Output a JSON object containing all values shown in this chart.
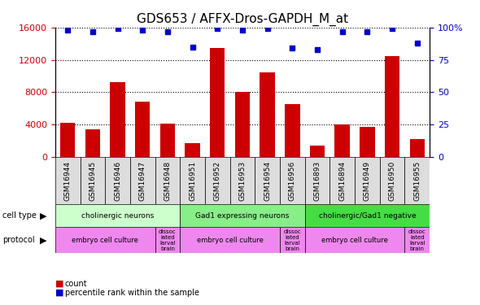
{
  "title": "GDS653 / AFFX-Dros-GAPDH_M_at",
  "samples": [
    "GSM16944",
    "GSM16945",
    "GSM16946",
    "GSM16947",
    "GSM16948",
    "GSM16951",
    "GSM16952",
    "GSM16953",
    "GSM16954",
    "GSM16956",
    "GSM16893",
    "GSM16894",
    "GSM16949",
    "GSM16950",
    "GSM16955"
  ],
  "counts": [
    4200,
    3400,
    9200,
    6800,
    4100,
    1700,
    13500,
    8000,
    10500,
    6500,
    1400,
    4000,
    3700,
    12500,
    2200
  ],
  "percentile_ranks": [
    98,
    97,
    99,
    98,
    97,
    85,
    99,
    98,
    99,
    84,
    83,
    97,
    97,
    99,
    88
  ],
  "ylim_left": [
    0,
    16000
  ],
  "ylim_right": [
    0,
    100
  ],
  "yticks_left": [
    0,
    4000,
    8000,
    12000,
    16000
  ],
  "yticks_right": [
    0,
    25,
    50,
    75,
    100
  ],
  "bar_color": "#CC0000",
  "dot_color": "#0000CC",
  "cell_type_groups": [
    {
      "label": "cholinergic neurons",
      "start": 0,
      "end": 5,
      "color": "#ccffcc"
    },
    {
      "label": "Gad1 expressing neurons",
      "start": 5,
      "end": 10,
      "color": "#88ee88"
    },
    {
      "label": "cholinergic/Gad1 negative",
      "start": 10,
      "end": 15,
      "color": "#44dd44"
    }
  ],
  "protocol_groups": [
    {
      "label": "embryo cell culture",
      "start": 0,
      "end": 4
    },
    {
      "label": "dissociated larval brain",
      "start": 4,
      "end": 5
    },
    {
      "label": "embryo cell culture",
      "start": 5,
      "end": 9
    },
    {
      "label": "dissociated larval brain",
      "start": 9,
      "end": 10
    },
    {
      "label": "embryo cell culture",
      "start": 10,
      "end": 14
    },
    {
      "label": "dissociated larval brain",
      "start": 14,
      "end": 15
    }
  ],
  "protocol_color": "#ee88ee",
  "tick_color_left": "#CC0000",
  "tick_color_right": "#0000CC",
  "grid_color": "#000000",
  "title_fontsize": 11,
  "axis_fontsize": 8,
  "sample_fontsize": 6.5,
  "legend_items": [
    {
      "label": "count",
      "color": "#CC0000"
    },
    {
      "label": "percentile rank within the sample",
      "color": "#0000CC"
    }
  ]
}
